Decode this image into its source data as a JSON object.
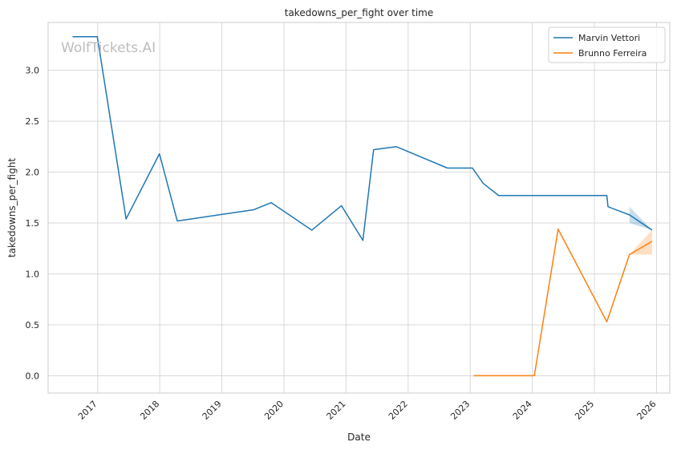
{
  "chart_data": {
    "type": "line",
    "title": "takedowns_per_fight over time",
    "xlabel": "Date",
    "ylabel": "takedowns_per_fight",
    "watermark": "WolfTickets.AI",
    "x_ticks": [
      "2017",
      "2018",
      "2019",
      "2020",
      "2021",
      "2022",
      "2023",
      "2024",
      "2025",
      "2026"
    ],
    "y_ticks": [
      "0.0",
      "0.5",
      "1.0",
      "1.5",
      "2.0",
      "2.5",
      "3.0"
    ],
    "xlim": [
      "2016-03-15",
      "2026-03-20"
    ],
    "ylim": [
      -0.17,
      3.47
    ],
    "grid": true,
    "legend_position": "top-right",
    "series": [
      {
        "name": "Marvin Vettori",
        "color": "#1f77b4",
        "points": [
          [
            "2016-08-06",
            3.33
          ],
          [
            "2016-12-30",
            3.33
          ],
          [
            "2017-06-17",
            1.54
          ],
          [
            "2017-12-30",
            2.18
          ],
          [
            "2018-04-14",
            1.52
          ],
          [
            "2019-07-06",
            1.63
          ],
          [
            "2019-10-18",
            1.7
          ],
          [
            "2020-06-13",
            1.43
          ],
          [
            "2020-12-05",
            1.67
          ],
          [
            "2021-04-10",
            1.33
          ],
          [
            "2021-06-12",
            2.22
          ],
          [
            "2021-10-23",
            2.25
          ],
          [
            "2022-08-20",
            2.04
          ],
          [
            "2023-01-14",
            2.04
          ],
          [
            "2023-03-18",
            1.89
          ],
          [
            "2023-06-17",
            1.77
          ],
          [
            "2024-01-01",
            1.77
          ],
          [
            "2024-09-01",
            1.77
          ],
          [
            "2025-03-15",
            1.77
          ],
          [
            "2025-03-22",
            1.66
          ],
          [
            "2025-07-26",
            1.58
          ],
          [
            "2025-12-06",
            1.43
          ]
        ],
        "band": [
          [
            "2025-07-26",
            1.5,
            1.66
          ],
          [
            "2025-12-06",
            1.43,
            1.43
          ]
        ]
      },
      {
        "name": "Brunno Ferreira",
        "color": "#ff7f0e",
        "points": [
          [
            "2023-01-21",
            0.0
          ],
          [
            "2024-01-13",
            0.0
          ],
          [
            "2024-06-01",
            1.44
          ],
          [
            "2025-03-15",
            0.53
          ],
          [
            "2025-07-26",
            1.19
          ],
          [
            "2025-12-06",
            1.32
          ]
        ],
        "band": [
          [
            "2025-07-26",
            1.19,
            1.19
          ],
          [
            "2025-12-06",
            1.19,
            1.43
          ]
        ]
      }
    ]
  }
}
